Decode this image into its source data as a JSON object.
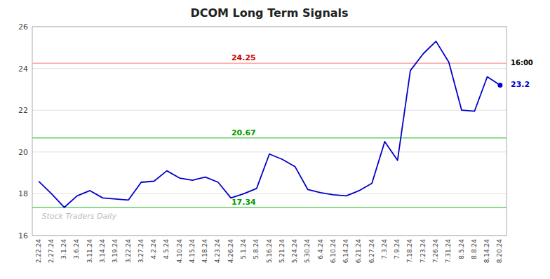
{
  "chart_data": {
    "type": "line",
    "title": "DCOM Long Term Signals",
    "categories": [
      "2.22.24",
      "2.27.24",
      "3.1.24",
      "3.6.24",
      "3.11.24",
      "3.14.24",
      "3.19.24",
      "3.22.24",
      "3.27.24",
      "4.2.24",
      "4.5.24",
      "4.10.24",
      "4.15.24",
      "4.18.24",
      "4.23.24",
      "4.26.24",
      "5.1.24",
      "5.8.24",
      "5.16.24",
      "5.21.24",
      "5.24.24",
      "5.30.24",
      "6.4.24",
      "6.10.24",
      "6.14.24",
      "6.21.24",
      "6.27.24",
      "7.3.24",
      "7.9.24",
      "7.18.24",
      "7.23.24",
      "7.26.24",
      "7.31.24",
      "8.5.24",
      "8.8.24",
      "8.14.24",
      "8.20.24"
    ],
    "values": [
      18.6,
      18.0,
      17.35,
      17.9,
      18.15,
      17.8,
      17.75,
      17.7,
      18.55,
      18.6,
      19.1,
      18.75,
      18.65,
      18.8,
      18.55,
      17.8,
      18.0,
      18.25,
      19.9,
      19.65,
      19.3,
      18.2,
      18.05,
      17.95,
      17.9,
      18.15,
      18.5,
      20.5,
      19.6,
      23.9,
      24.7,
      25.3,
      24.3,
      22.0,
      21.95,
      23.6,
      23.2
    ],
    "color": "#0000cc",
    "ylim": [
      16,
      26
    ],
    "yticks": [
      16,
      18,
      20,
      22,
      24,
      26
    ],
    "grid": true,
    "hlines": [
      {
        "value": 24.25,
        "label": "24.25",
        "color": "#ffaaaa",
        "label_color": "#cc0000"
      },
      {
        "value": 20.67,
        "label": "20.67",
        "color": "#66cc66",
        "label_color": "#009900"
      },
      {
        "value": 17.34,
        "label": "17.34",
        "color": "#66cc66",
        "label_color": "#009900"
      }
    ],
    "end_label": {
      "value": 23.2,
      "label": "23.2",
      "color": "#0000cc"
    },
    "annotations": [
      {
        "text": "16:00",
        "y": 24.25,
        "color": "#000000"
      },
      {
        "text": "Stock Traders Daily",
        "color": "#bbbbbb"
      }
    ]
  }
}
